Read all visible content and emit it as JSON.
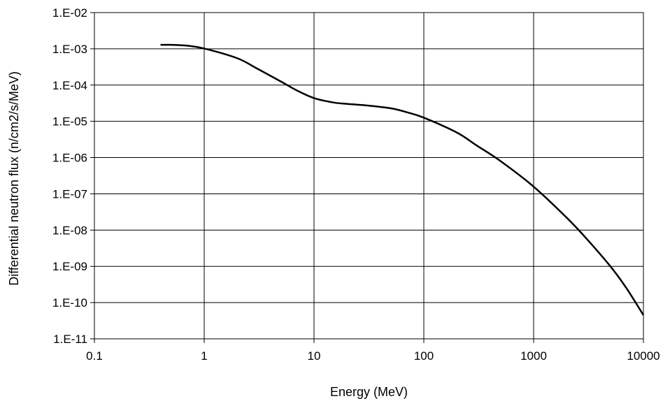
{
  "chart_data": {
    "type": "line",
    "title": "",
    "xlabel": "Energy (MeV)",
    "ylabel": "Differential neutron flux (n/cm2/s/MeV)",
    "x_scale": "log",
    "y_scale": "log",
    "xlim": [
      0.1,
      10000
    ],
    "ylim": [
      1e-11,
      0.01
    ],
    "grid": true,
    "legend": "none",
    "x_ticks": [
      {
        "value": 0.1,
        "label": "0.1"
      },
      {
        "value": 1,
        "label": "1"
      },
      {
        "value": 10,
        "label": "10"
      },
      {
        "value": 100,
        "label": "100"
      },
      {
        "value": 1000,
        "label": "1000"
      },
      {
        "value": 10000,
        "label": "10000"
      }
    ],
    "y_ticks": [
      {
        "value": 0.01,
        "label": "1.E-02"
      },
      {
        "value": 0.001,
        "label": "1.E-03"
      },
      {
        "value": 0.0001,
        "label": "1.E-04"
      },
      {
        "value": 1e-05,
        "label": "1.E-05"
      },
      {
        "value": 1e-06,
        "label": "1.E-06"
      },
      {
        "value": 1e-07,
        "label": "1.E-07"
      },
      {
        "value": 1e-08,
        "label": "1.E-08"
      },
      {
        "value": 1e-09,
        "label": "1.E-09"
      },
      {
        "value": 1e-10,
        "label": "1.E-10"
      },
      {
        "value": 1e-11,
        "label": "1.E-11"
      }
    ],
    "series": [
      {
        "color": "#000000",
        "points": [
          {
            "x": 0.4,
            "y": 0.00129
          },
          {
            "x": 0.5,
            "y": 0.00129
          },
          {
            "x": 0.7,
            "y": 0.00122
          },
          {
            "x": 1,
            "y": 0.00102
          },
          {
            "x": 2,
            "y": 0.00055
          },
          {
            "x": 3,
            "y": 0.00029
          },
          {
            "x": 5,
            "y": 0.000125
          },
          {
            "x": 7,
            "y": 7.08e-05
          },
          {
            "x": 10,
            "y": 4.37e-05
          },
          {
            "x": 15,
            "y": 3.31e-05
          },
          {
            "x": 20,
            "y": 3.02e-05
          },
          {
            "x": 30,
            "y": 2.75e-05
          },
          {
            "x": 50,
            "y": 2.29e-05
          },
          {
            "x": 70,
            "y": 1.78e-05
          },
          {
            "x": 100,
            "y": 1.26e-05
          },
          {
            "x": 200,
            "y": 4.9e-06
          },
          {
            "x": 300,
            "y": 2.2e-06
          },
          {
            "x": 500,
            "y": 8e-07
          },
          {
            "x": 1000,
            "y": 1.58e-07
          },
          {
            "x": 2000,
            "y": 2.2e-08
          },
          {
            "x": 3000,
            "y": 6e-09
          },
          {
            "x": 5000,
            "y": 1e-09
          },
          {
            "x": 7000,
            "y": 2.5e-10
          },
          {
            "x": 10000,
            "y": 4.5e-11
          }
        ]
      }
    ]
  }
}
